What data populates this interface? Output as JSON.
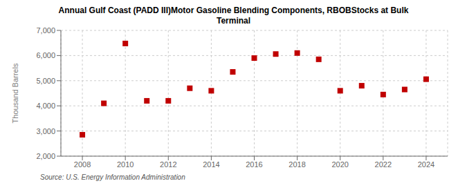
{
  "chart_data": {
    "type": "scatter",
    "title": "Annual Gulf Coast (PADD III)Motor Gasoline Blending Components, RBOBStocks at Bulk\nTerminal",
    "ylabel": "Thousand Barrels",
    "source": "Source: U.S. Energy Information Administration",
    "x": [
      2008,
      2009,
      2010,
      2011,
      2012,
      2013,
      2014,
      2015,
      2016,
      2017,
      2018,
      2019,
      2020,
      2021,
      2022,
      2023,
      2024
    ],
    "values": [
      2850,
      4100,
      6480,
      4200,
      4200,
      4700,
      4600,
      5350,
      5900,
      6060,
      6100,
      5850,
      4600,
      4800,
      4450,
      4650,
      5060
    ],
    "color": "#c00000",
    "marker": "square",
    "xlim": [
      2007,
      2025
    ],
    "xticks": [
      2008,
      2010,
      2012,
      2014,
      2016,
      2018,
      2020,
      2022,
      2024
    ],
    "ylim": [
      2000,
      7000
    ],
    "yticks": [
      {
        "value": 2000,
        "label": "2,000"
      },
      {
        "value": 3000,
        "label": "3,000"
      },
      {
        "value": 4000,
        "label": "4,000"
      },
      {
        "value": 5000,
        "label": "5,000"
      },
      {
        "value": 6000,
        "label": "6,000"
      },
      {
        "value": 7000,
        "label": "7,000"
      }
    ],
    "grid": true
  }
}
